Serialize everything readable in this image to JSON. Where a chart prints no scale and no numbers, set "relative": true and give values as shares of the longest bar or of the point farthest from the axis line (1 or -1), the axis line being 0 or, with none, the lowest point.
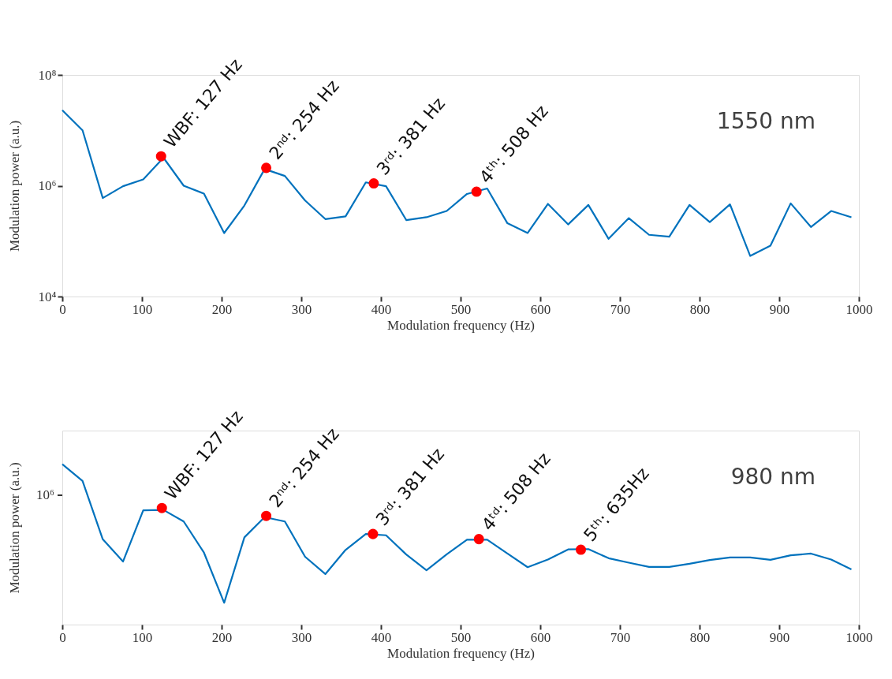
{
  "chart_data": [
    {
      "type": "line",
      "xlabel": "Modulation frequency (Hz)",
      "ylabel": "Modulation power (a.u.)",
      "log": "y",
      "xlim": [
        0,
        1000
      ],
      "xticks": [
        0,
        100,
        200,
        300,
        400,
        500,
        600,
        700,
        800,
        900,
        1000
      ],
      "ylim": [
        10000,
        100000000
      ],
      "yticks": [
        {
          "value": 10000,
          "label": "10⁴"
        },
        {
          "value": 1000000,
          "label": "10⁶"
        },
        {
          "value": 100000000,
          "label": "10⁸"
        }
      ],
      "series": [
        {
          "color": "#0072bd",
          "x": [
            0,
            25.4,
            50.8,
            76.2,
            101.6,
            127,
            152.4,
            177.8,
            203.2,
            228.6,
            254,
            279.4,
            304.8,
            330.2,
            355.6,
            381,
            406.4,
            431.8,
            457.2,
            482.6,
            508,
            533.4,
            558.8,
            584.2,
            609.6,
            635,
            660.4,
            685.8,
            711.2,
            736.6,
            762,
            787.4,
            812.8,
            838.2,
            863.6,
            889,
            914.4,
            939.8,
            965.2,
            990.6
          ],
          "values": [
            23000000,
            10000000,
            600000,
            980000,
            1300000,
            3200000,
            1000000,
            720000,
            140000,
            440000,
            2000000,
            1500000,
            540000,
            250000,
            280000,
            1150000,
            980000,
            240000,
            270000,
            350000,
            710000,
            890000,
            210000,
            140000,
            470000,
            200000,
            450000,
            110000,
            260000,
            130000,
            120000,
            450000,
            220000,
            460000,
            54000,
            83000,
            480000,
            180000,
            350000,
            270000
          ]
        },
        {
          "type": "scatter",
          "color": "#ff0000",
          "x": [
            124,
            256,
            391,
            520
          ],
          "values": [
            3400000,
            2100000,
            1100000,
            780000
          ]
        }
      ],
      "annotations": [
        {
          "text": "WBF: 127 Hz",
          "x": 124,
          "y": 3400000
        },
        {
          "text": "2ⁿᵈ: 254 Hz",
          "x": 256,
          "y": 2100000
        },
        {
          "text": "3ʳᵈ: 381 Hz",
          "x": 391,
          "y": 1100000
        },
        {
          "text": "4ᵗʰ: 508 Hz",
          "x": 520,
          "y": 780000
        },
        "1550 nm"
      ]
    },
    {
      "type": "line",
      "xlabel": "Modulation frequency (Hz)",
      "ylabel": "Modulation power  (a.u.)",
      "relative": true,
      "xlim": [
        0,
        1000
      ],
      "xticks": [
        0,
        100,
        200,
        300,
        400,
        500,
        600,
        700,
        800,
        900,
        1000
      ],
      "series": [
        {
          "color": "#0072bd",
          "x": [
            0,
            25.4,
            50.8,
            76.2,
            101.6,
            127,
            152.4,
            177.8,
            203.2,
            228.6,
            254,
            279.4,
            304.8,
            330.2,
            355.6,
            381,
            406.4,
            431.8,
            457.2,
            482.6,
            508,
            533.4,
            558.8,
            584.2,
            609.6,
            635,
            660.4,
            685.8,
            711.2,
            736.6,
            762,
            787.4,
            812.8,
            838.2,
            863.6,
            889,
            914.4,
            939.8,
            965.2,
            990.6
          ],
          "values": [
            1.0,
            0.896,
            0.532,
            0.393,
            0.713,
            0.715,
            0.643,
            0.449,
            0.136,
            0.544,
            0.67,
            0.643,
            0.423,
            0.315,
            0.466,
            0.565,
            0.557,
            0.437,
            0.339,
            0.438,
            0.529,
            0.529,
            0.443,
            0.358,
            0.406,
            0.469,
            0.471,
            0.414,
            0.386,
            0.36,
            0.36,
            0.379,
            0.403,
            0.419,
            0.419,
            0.404,
            0.432,
            0.443,
            0.406,
            0.344
          ]
        },
        {
          "type": "scatter",
          "color": "#ff0000",
          "x": [
            125,
            256,
            390,
            523,
            651
          ],
          "values": [
            0.727,
            0.678,
            0.565,
            0.533,
            0.467
          ]
        }
      ],
      "annotations": [
        {
          "text": "WBF: 127 Hz",
          "x": 125,
          "y": 0.727
        },
        {
          "text": "2ⁿᵈ: 254 Hz",
          "x": 256,
          "y": 0.678
        },
        {
          "text": "3ʳᵈ: 381 Hz",
          "x": 390,
          "y": 0.565
        },
        {
          "text": "4ᵗᵈ: 508 Hz",
          "x": 523,
          "y": 0.533
        },
        {
          "text": "5ᵗʰ: 635Hz",
          "x": 651,
          "y": 0.467
        },
        "980 nm",
        "10⁶"
      ]
    }
  ]
}
